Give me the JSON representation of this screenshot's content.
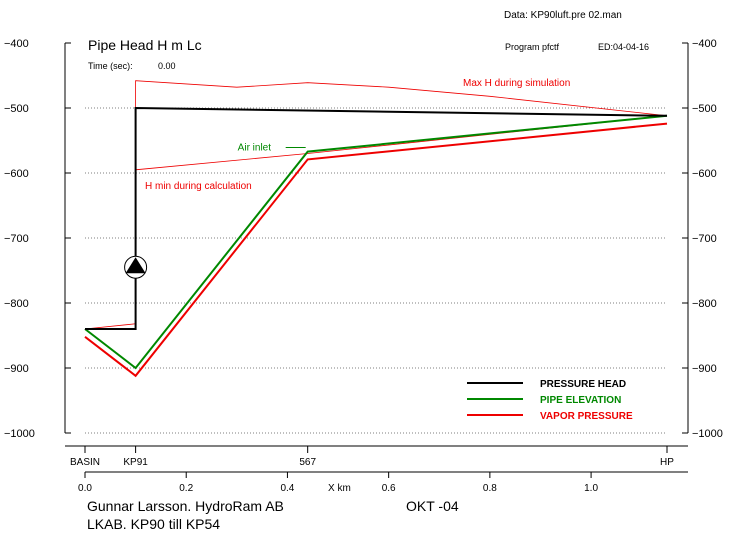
{
  "header": {
    "data_file": "Data: KP90luft.pre    02.man",
    "title": "Pipe Head    H  m Lc",
    "program": "Program  pfctf",
    "edition": "ED:04-04-16",
    "time_label": "Time (sec):",
    "time_value": "0.00"
  },
  "footer": {
    "author": "Gunnar Larsson. HydroRam AB",
    "date": "OKT -04",
    "project": "LKAB. KP90 till KP54"
  },
  "chart_data": {
    "type": "line",
    "xlabel": "X km",
    "ylim": [
      -1000,
      -400
    ],
    "xlim": [
      0.0,
      1.15
    ],
    "y_ticks": [
      -400,
      -500,
      -600,
      -700,
      -800,
      -900,
      -1000
    ],
    "y_tick_labels": [
      "−400",
      "−500",
      "−600",
      "−700",
      "−800",
      "−900",
      "−1000"
    ],
    "x_ticks": [
      0.0,
      0.2,
      0.4,
      0.6,
      0.8,
      1.0
    ],
    "x_tick_labels": [
      "0.0",
      "0.2",
      "0.4",
      "0.6",
      "0.8",
      "1.0"
    ],
    "stations": [
      {
        "name": "BASIN",
        "x": 0.0
      },
      {
        "name": "KP91",
        "x": 0.1
      },
      {
        "name": "567",
        "x": 0.44
      },
      {
        "name": "HP",
        "x": 1.15
      }
    ],
    "grid": "dotted horizontal",
    "legend_position": "bottom-right",
    "series": [
      {
        "name": "PRESSURE HEAD",
        "color": "#000000",
        "width": 2,
        "points": [
          [
            0.0,
            -840
          ],
          [
            0.1,
            -840
          ],
          [
            0.1,
            -500
          ],
          [
            1.15,
            -512
          ]
        ]
      },
      {
        "name": "PIPE ELEVATION",
        "color": "#008800",
        "width": 2,
        "points": [
          [
            0.0,
            -840
          ],
          [
            0.1,
            -900
          ],
          [
            0.44,
            -567
          ],
          [
            1.15,
            -512
          ]
        ]
      },
      {
        "name": "VAPOR PRESSURE",
        "color": "#ee0000",
        "width": 2,
        "points": [
          [
            0.0,
            -852
          ],
          [
            0.1,
            -912
          ],
          [
            0.44,
            -579
          ],
          [
            1.15,
            -524
          ]
        ]
      }
    ],
    "envelopes": [
      {
        "label": "Max H during simulation",
        "color": "#ee0000",
        "points": [
          [
            0.1,
            -830
          ],
          [
            0.1,
            -458
          ],
          [
            0.3,
            -468
          ],
          [
            0.44,
            -461
          ],
          [
            0.6,
            -468
          ],
          [
            0.8,
            -482
          ],
          [
            1.15,
            -512
          ]
        ]
      },
      {
        "label": "H min during calculation",
        "color": "#ee0000",
        "points": [
          [
            0.0,
            -840
          ],
          [
            0.1,
            -832
          ],
          [
            0.1,
            -595
          ],
          [
            0.44,
            -570
          ],
          [
            1.15,
            -512
          ]
        ]
      }
    ],
    "annotations": [
      {
        "text": "Air inlet",
        "color": "#008800",
        "x": 0.44,
        "y": -567
      },
      {
        "text": "Max H during simulation",
        "color": "#ee0000"
      },
      {
        "text": "H min during calculation",
        "color": "#ee0000"
      }
    ],
    "pump": {
      "x": 0.1,
      "y": -745
    }
  }
}
